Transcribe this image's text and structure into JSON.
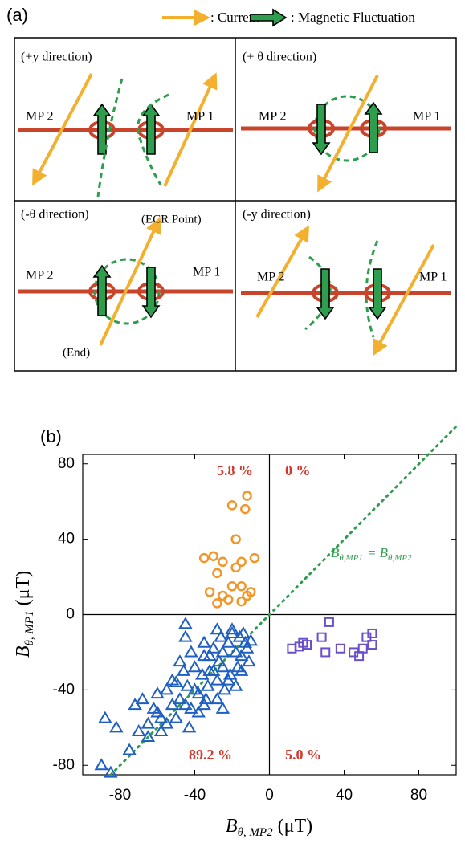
{
  "panel_a": {
    "label": "(a)",
    "legend": {
      "current": ": Current",
      "fluctuation": ": Magnetic Fluctuation"
    },
    "quadrants": [
      {
        "title": "(+y direction)",
        "left": "MP 2",
        "right": "MP 1"
      },
      {
        "title": "(+ θ direction)",
        "left": "MP 2",
        "right": "MP 1"
      },
      {
        "title": "(-θ direction)",
        "left": "MP 2",
        "right": "MP 1",
        "top_note": "(ECR Point)",
        "bottom_note": "(End)"
      },
      {
        "title": "(-y direction)",
        "left": "MP 2",
        "right": "MP 1"
      }
    ]
  },
  "chart_data": {
    "type": "scatter",
    "panel_label": "(b)",
    "x_label": {
      "main": "B",
      "sub": "θ, MP2",
      "unit": "(μT)"
    },
    "y_label": {
      "main": "B",
      "sub": "θ, MP1",
      "unit": "(μT)"
    },
    "xlim": [
      -100,
      100
    ],
    "ylim": [
      -85,
      85
    ],
    "xticks": [
      -80,
      -40,
      0,
      40,
      80
    ],
    "yticks": [
      -80,
      -40,
      0,
      40,
      80
    ],
    "reference_label": [
      "B",
      "θ,MP1",
      "= B",
      "θ,MP2"
    ],
    "annotations": [
      "5.8 %",
      "0 %",
      "89.2 %",
      "5.0 %"
    ],
    "series": [
      {
        "marker": "triangle",
        "color": "#1f5fbf",
        "x": [
          -90,
          -85,
          -88,
          -82,
          -75,
          -72,
          -70,
          -68,
          -65,
          -62,
          -60,
          -58,
          -55,
          -52,
          -50,
          -48,
          -46,
          -45,
          -44,
          -42,
          -40,
          -38,
          -36,
          -35,
          -34,
          -32,
          -30,
          -28,
          -27,
          -26,
          -25,
          -24,
          -22,
          -21,
          -20,
          -18,
          -17,
          -16,
          -15,
          -14,
          -12,
          -11,
          -10,
          -65,
          -60,
          -58,
          -55,
          -52,
          -50,
          -48,
          -45,
          -42,
          -40,
          -38,
          -35,
          -33,
          -30,
          -28,
          -25,
          -22,
          -20,
          -18,
          -15,
          -13,
          -45,
          -43,
          -35,
          -32,
          -28,
          -25
        ],
        "y": [
          -80,
          -84,
          -55,
          -60,
          -72,
          -48,
          -62,
          -45,
          -58,
          -50,
          -42,
          -55,
          -40,
          -48,
          -36,
          -45,
          -30,
          -5,
          -38,
          -50,
          -28,
          -42,
          -32,
          -22,
          -45,
          -30,
          -18,
          -35,
          -25,
          -12,
          -28,
          -40,
          -15,
          -32,
          -8,
          -20,
          -28,
          -12,
          -22,
          -10,
          -18,
          -25,
          -14,
          -65,
          -52,
          -62,
          -58,
          -35,
          -55,
          -25,
          -48,
          -20,
          -40,
          -52,
          -15,
          -38,
          -30,
          -45,
          -20,
          -35,
          -10,
          -38,
          -30,
          -15,
          -12,
          -60,
          -48,
          -22,
          -8,
          -50
        ]
      },
      {
        "marker": "circle",
        "color": "#f0962a",
        "x": [
          -12,
          -20,
          -13,
          -18,
          -35,
          -30,
          -25,
          -15,
          -8,
          -28,
          -18,
          -32,
          -25,
          -20,
          -15,
          -10,
          -22,
          -15,
          -28,
          -12
        ],
        "y": [
          63,
          58,
          56,
          40,
          30,
          31,
          28,
          28,
          30,
          22,
          25,
          12,
          10,
          15,
          15,
          12,
          8,
          7,
          6,
          10
        ]
      },
      {
        "marker": "square",
        "color": "#6a4fc8",
        "x": [
          12,
          18,
          20,
          28,
          32,
          30,
          38,
          45,
          50,
          52,
          55,
          55,
          48,
          16
        ],
        "y": [
          -18,
          -15,
          -16,
          -12,
          -4,
          -20,
          -18,
          -20,
          -18,
          -12,
          -10,
          -16,
          -22,
          -17
        ]
      }
    ]
  }
}
